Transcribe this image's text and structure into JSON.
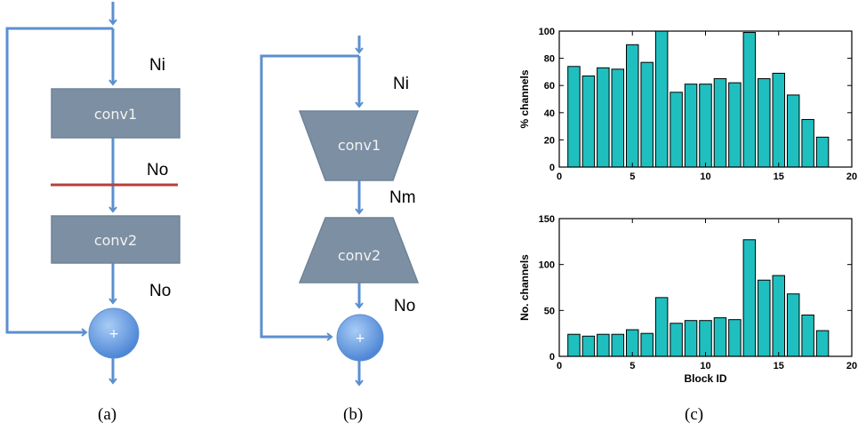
{
  "diagram_a": {
    "label_top": "Ni",
    "label_mid": "No",
    "label_bottom": "No",
    "box1": "conv1",
    "box2": "conv2",
    "plus": "+",
    "caption": "(a)"
  },
  "diagram_b": {
    "label_top": "Ni",
    "label_mid": "Nm",
    "label_bottom": "No",
    "box1": "conv1",
    "box2": "conv2",
    "plus": "+",
    "caption": "(b)"
  },
  "caption_c": "(c)",
  "colors": {
    "arrow": "#5b8fd0",
    "box_fill": "#7d8fa3",
    "box_stroke": "#6e8399",
    "cut_line": "#b5403a",
    "bar_fill": "#1fbfbf",
    "plus_fill": "#6fa3e6"
  },
  "chart_data": [
    {
      "type": "bar",
      "xlabel": "",
      "ylabel": "% channels",
      "xlim": [
        0,
        20
      ],
      "ylim": [
        0,
        100
      ],
      "xticks": [
        0,
        5,
        10,
        15,
        20
      ],
      "yticks": [
        0,
        20,
        40,
        60,
        80,
        100
      ],
      "x": [
        1,
        2,
        3,
        4,
        5,
        6,
        7,
        8,
        9,
        10,
        11,
        12,
        13,
        14,
        15,
        16,
        17,
        18
      ],
      "values": [
        74,
        67,
        73,
        72,
        90,
        77,
        100,
        55,
        61,
        61,
        65,
        62,
        99,
        65,
        69,
        53,
        35,
        22
      ]
    },
    {
      "type": "bar",
      "xlabel": "Block ID",
      "ylabel": "No. channels",
      "xlim": [
        0,
        20
      ],
      "ylim": [
        0,
        150
      ],
      "xticks": [
        0,
        5,
        10,
        15,
        20
      ],
      "yticks": [
        0,
        50,
        100,
        150
      ],
      "x": [
        1,
        2,
        3,
        4,
        5,
        6,
        7,
        8,
        9,
        10,
        11,
        12,
        13,
        14,
        15,
        16,
        17,
        18
      ],
      "values": [
        24,
        22,
        24,
        24,
        29,
        25,
        64,
        36,
        39,
        39,
        42,
        40,
        127,
        83,
        88,
        68,
        45,
        28
      ]
    }
  ]
}
